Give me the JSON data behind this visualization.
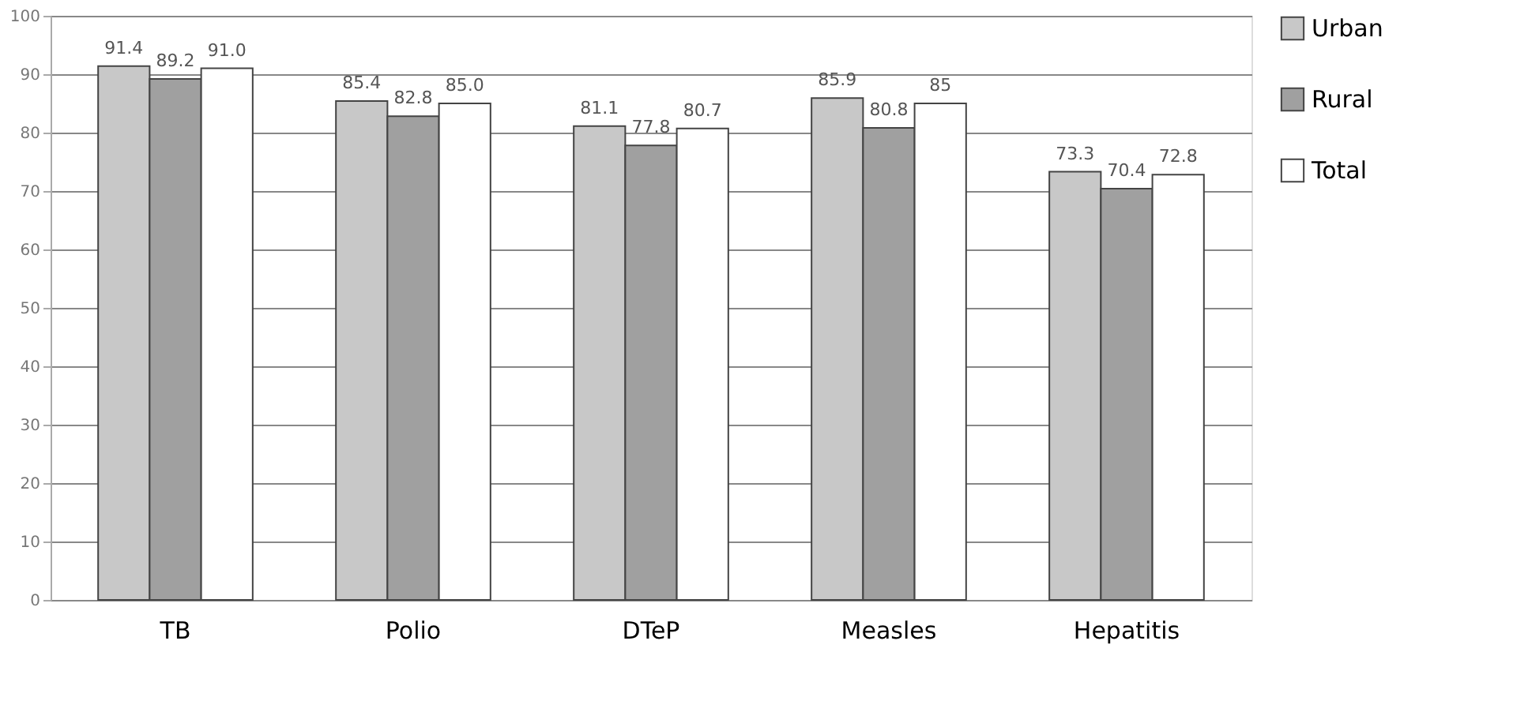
{
  "chart_data": {
    "type": "bar",
    "categories": [
      "TB",
      "Polio",
      "DTeP",
      "Measles",
      "Hepatitis"
    ],
    "series": [
      {
        "name": "Urban",
        "color": "#c8c8c8",
        "values": [
          91.4,
          85.4,
          81.1,
          85.9,
          73.3
        ],
        "value_labels": [
          "91.4",
          "85.4",
          "81.1",
          "85.9",
          "73.3"
        ]
      },
      {
        "name": "Rural",
        "color": "#a0a0a0",
        "values": [
          89.2,
          82.8,
          77.8,
          80.8,
          70.4
        ],
        "value_labels": [
          "89.2",
          "82.8",
          "77.8",
          "80.8",
          "70.4"
        ]
      },
      {
        "name": "Total",
        "color": "#ffffff",
        "values": [
          91.0,
          85.0,
          80.7,
          85,
          72.8
        ],
        "value_labels": [
          "91.0",
          "85.0",
          "80.7",
          "85",
          "72.8"
        ]
      }
    ],
    "ylim": [
      0,
      100
    ],
    "yticks": [
      0,
      10,
      20,
      30,
      40,
      50,
      60,
      70,
      80,
      90,
      100
    ],
    "grid": "y",
    "legend": "right"
  }
}
